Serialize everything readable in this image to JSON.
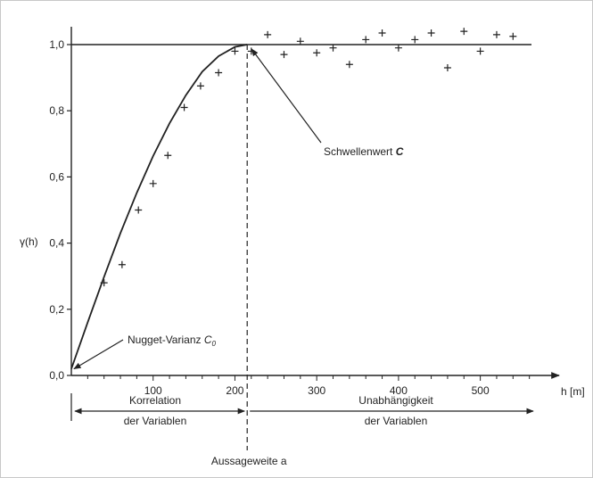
{
  "chart_data": {
    "type": "line",
    "title": "",
    "xlabel": "h [m]",
    "ylabel": "γ(h)",
    "xlim": [
      0,
      580
    ],
    "ylim": [
      0,
      1.05
    ],
    "x_ticks": [
      {
        "value": 100,
        "label": "100"
      },
      {
        "value": 200,
        "label": "200"
      },
      {
        "value": 300,
        "label": "300"
      },
      {
        "value": 400,
        "label": "400"
      },
      {
        "value": 500,
        "label": "500"
      }
    ],
    "y_ticks": [
      {
        "value": 0.0,
        "label": "0,0"
      },
      {
        "value": 0.2,
        "label": "0,2"
      },
      {
        "value": 0.4,
        "label": "0,4"
      },
      {
        "value": 0.6,
        "label": "0,6"
      },
      {
        "value": 0.8,
        "label": "0,8"
      },
      {
        "value": 1.0,
        "label": "1,0"
      }
    ],
    "sill": 1.0,
    "nugget": 0.02,
    "range": 215,
    "model_curve": {
      "x": [
        0,
        20,
        40,
        60,
        80,
        100,
        120,
        140,
        160,
        180,
        200,
        215
      ],
      "y": [
        0.02,
        0.16,
        0.298,
        0.43,
        0.552,
        0.663,
        0.762,
        0.847,
        0.918,
        0.965,
        0.993,
        1.0
      ]
    },
    "measured_points": [
      {
        "x": 40,
        "y": 0.28
      },
      {
        "x": 62,
        "y": 0.335
      },
      {
        "x": 82,
        "y": 0.5
      },
      {
        "x": 100,
        "y": 0.58
      },
      {
        "x": 118,
        "y": 0.665
      },
      {
        "x": 138,
        "y": 0.81
      },
      {
        "x": 158,
        "y": 0.875
      },
      {
        "x": 180,
        "y": 0.915
      },
      {
        "x": 200,
        "y": 0.98
      },
      {
        "x": 220,
        "y": 0.98
      },
      {
        "x": 240,
        "y": 1.03
      },
      {
        "x": 260,
        "y": 0.97
      },
      {
        "x": 280,
        "y": 1.01
      },
      {
        "x": 300,
        "y": 0.975
      },
      {
        "x": 320,
        "y": 0.99
      },
      {
        "x": 340,
        "y": 0.94
      },
      {
        "x": 360,
        "y": 1.015
      },
      {
        "x": 380,
        "y": 1.035
      },
      {
        "x": 400,
        "y": 0.99
      },
      {
        "x": 420,
        "y": 1.015
      },
      {
        "x": 440,
        "y": 1.035
      },
      {
        "x": 460,
        "y": 0.93
      },
      {
        "x": 480,
        "y": 1.04
      },
      {
        "x": 500,
        "y": 0.98
      },
      {
        "x": 520,
        "y": 1.03
      },
      {
        "x": 540,
        "y": 1.025
      }
    ],
    "annotations": {
      "sill_label": "Schwellenwert ",
      "sill_symbol": "C",
      "nugget_label": "Nugget-Varianz ",
      "nugget_symbol": "C",
      "nugget_subscript": "0",
      "range_label": "Aussageweite a",
      "correlation_line1": "Korrelation",
      "correlation_line2": "der Variablen",
      "independence_line1": "Unabhängigkeit",
      "independence_line2": "der Variablen"
    },
    "grid": false,
    "legend": "none"
  },
  "colors": {
    "ink": "#222222",
    "frame": "#c8c8c8",
    "background": "#ffffff"
  }
}
